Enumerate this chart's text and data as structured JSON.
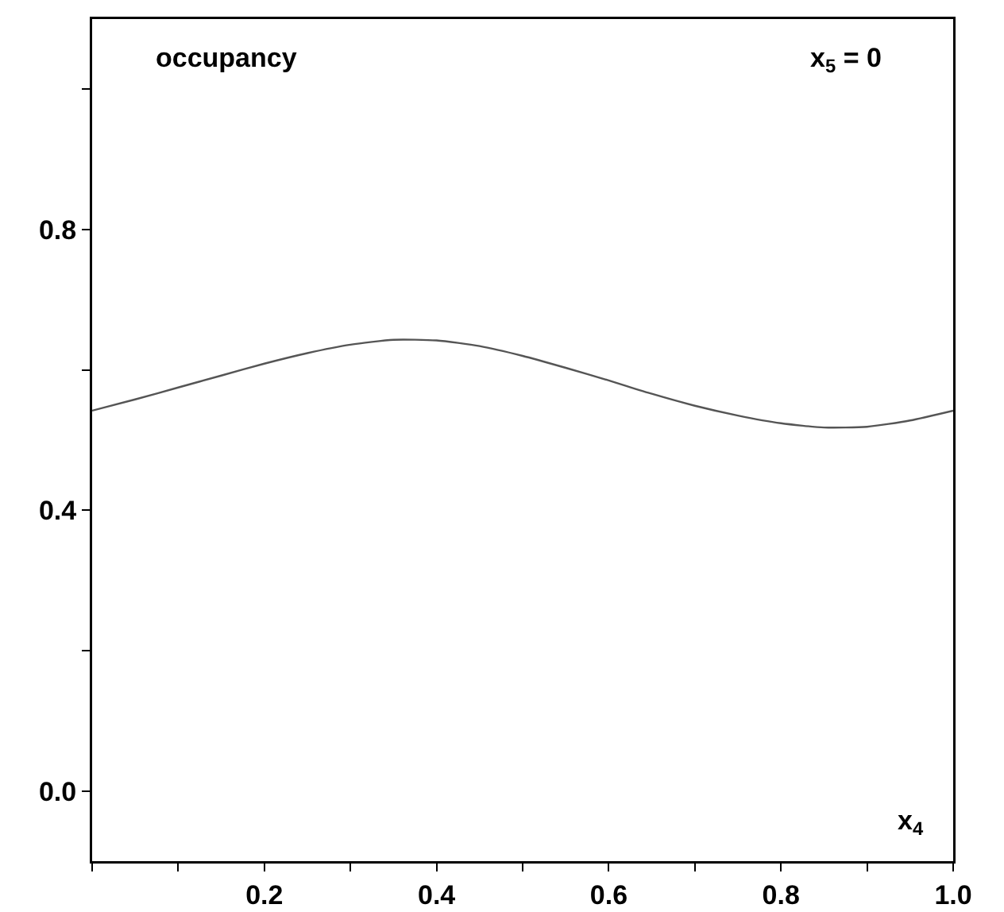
{
  "chart_data": {
    "type": "line",
    "xlabel": "x$_{4}$",
    "annotations": [
      "occupancy",
      "x$_{5}$ = 0"
    ],
    "x": [
      0,
      0.05,
      0.1,
      0.15,
      0.2,
      0.25,
      0.3,
      0.35,
      0.4,
      0.45,
      0.5,
      0.55,
      0.6,
      0.65,
      0.7,
      0.75,
      0.8,
      0.85,
      0.9,
      0.95,
      1.0
    ],
    "series": [
      {
        "color": "#555555",
        "values": [
          0.542,
          0.558,
          0.575,
          0.592,
          0.609,
          0.624,
          0.636,
          0.643,
          0.642,
          0.634,
          0.62,
          0.603,
          0.585,
          0.566,
          0.549,
          0.535,
          0.524,
          0.518,
          0.519,
          0.528,
          0.542
        ]
      }
    ],
    "xlim": [
      0,
      1
    ],
    "ylim": [
      -0.1,
      1.1
    ],
    "xticks": [
      {
        "value": 0,
        "label": null
      },
      {
        "value": 0.1,
        "label": null
      },
      {
        "value": 0.2,
        "label": "0.2"
      },
      {
        "value": 0.3,
        "label": null
      },
      {
        "value": 0.4,
        "label": "0.4"
      },
      {
        "value": 0.5,
        "label": null
      },
      {
        "value": 0.6,
        "label": "0.6"
      },
      {
        "value": 0.7,
        "label": null
      },
      {
        "value": 0.8,
        "label": "0.8"
      },
      {
        "value": 0.9,
        "label": null
      },
      {
        "value": 1.0,
        "label": "1.0"
      }
    ],
    "yticks": [
      {
        "value": 0,
        "label": "0.0"
      },
      {
        "value": 0.2,
        "label": null
      },
      {
        "value": 0.4,
        "label": "0.4"
      },
      {
        "value": 0.6,
        "label": null
      },
      {
        "value": 0.8,
        "label": "0.8"
      },
      {
        "value": 1.0,
        "label": null
      }
    ],
    "grid": false,
    "marker": "none",
    "line_style": "solid"
  }
}
